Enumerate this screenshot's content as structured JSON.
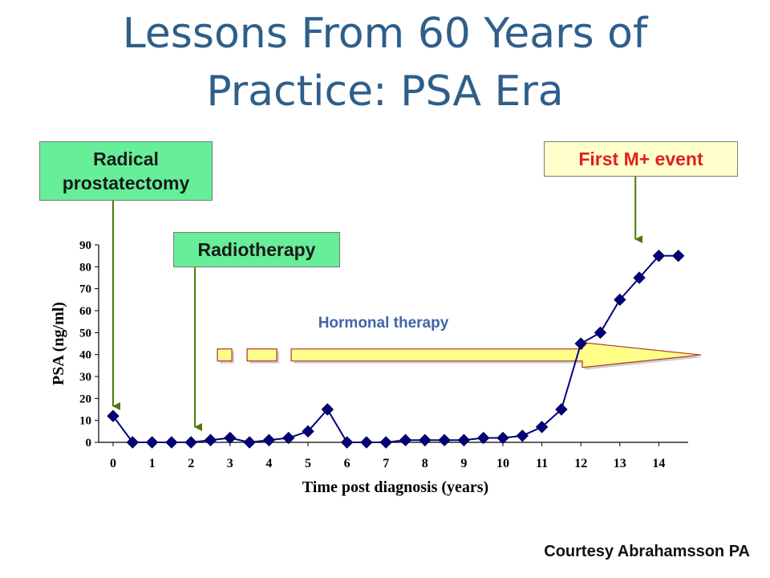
{
  "slide": {
    "title_line1": "Lessons From 60 Years of",
    "title_line2": "Practice: PSA Era",
    "courtesy": "Courtesy Abrahamsson PA"
  },
  "callouts": {
    "radical_prostatectomy": "Radical prostatectomy",
    "radiotherapy": "Radiotherapy",
    "first_m_event": "First M+ event",
    "hormonal_therapy": "Hormonal therapy"
  },
  "colors": {
    "title": "#2e5f8a",
    "callout_green": "#66ee99",
    "callout_yellow": "#ffffcc",
    "m_event_text": "#e02020",
    "arrow_green": "#4a7a00",
    "series": "#000080",
    "hormonal_label": "#3f66a8",
    "arrow_fill": "#ffff88",
    "arrow_stroke": "#b03030"
  },
  "chart_data": {
    "type": "line",
    "xlabel": "Time post diagnosis (years)",
    "ylabel": "PSA (ng/ml)",
    "xlim": [
      0,
      14
    ],
    "ylim": [
      0,
      90
    ],
    "xticks": [
      "0",
      "1",
      "2",
      "3",
      "4",
      "5",
      "6",
      "7",
      "8",
      "9",
      "10",
      "11",
      "12",
      "13",
      "14"
    ],
    "yticks": [
      "0",
      "10",
      "20",
      "30",
      "40",
      "50",
      "60",
      "70",
      "80",
      "90"
    ],
    "grid": false,
    "x": [
      0,
      0.5,
      1,
      1.5,
      2,
      2.5,
      3,
      3.5,
      4,
      4.5,
      5,
      5.5,
      6,
      6.5,
      7,
      7.5,
      8,
      8.5,
      9,
      9.5,
      10,
      10.5,
      11,
      11.5,
      12,
      12.5,
      13,
      13.5,
      14,
      14.5
    ],
    "y": [
      12,
      0,
      0,
      0,
      0,
      1,
      2,
      0,
      1,
      2,
      5,
      15,
      0,
      0,
      0,
      1,
      1,
      1,
      1,
      2,
      2,
      3,
      7,
      15,
      45,
      50,
      65,
      75,
      85,
      85
    ],
    "annotations": [
      {
        "text": "Radical prostatectomy",
        "x": 0
      },
      {
        "text": "Radiotherapy",
        "x": 2.1
      },
      {
        "text": "First M+ event",
        "x": 13.4
      },
      {
        "text": "Hormonal therapy",
        "x_start": 2.8,
        "y": 40
      }
    ]
  }
}
